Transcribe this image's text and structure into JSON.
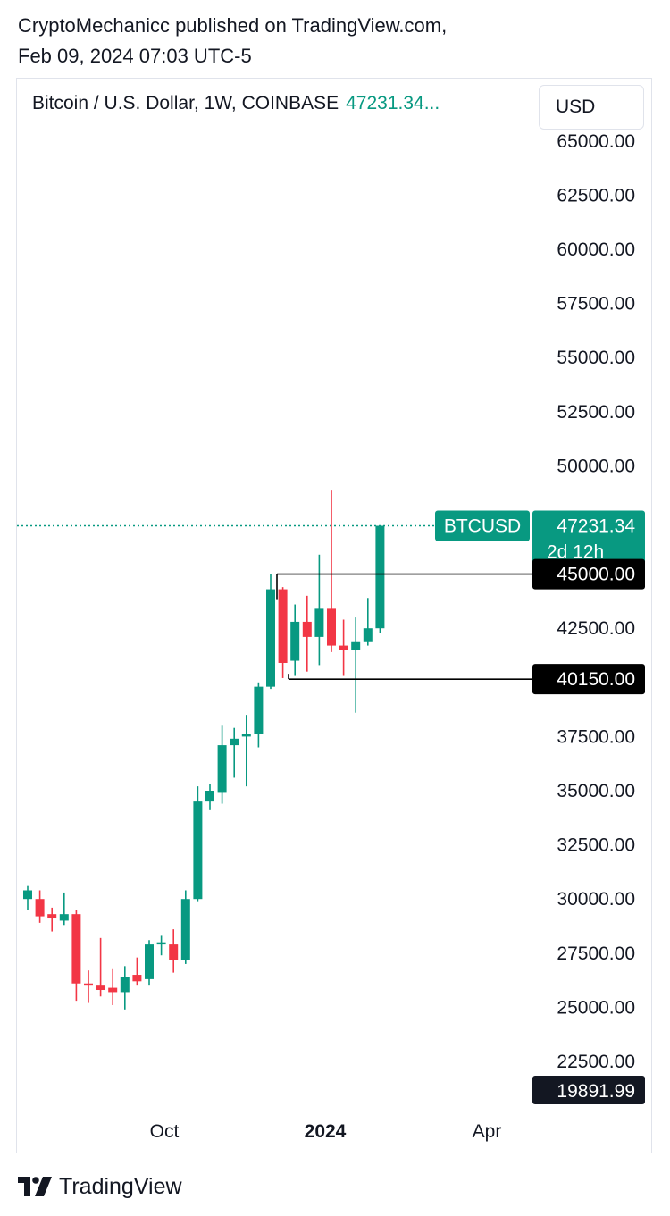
{
  "header": {
    "line1": "CryptoMechanicc published on TradingView.com,",
    "line2": "Feb 09, 2024 07:03 UTC-5"
  },
  "symbol": {
    "name": "Bitcoin / U.S. Dollar, 1W, COINBASE",
    "price": "47231.34..."
  },
  "currency_button": "USD",
  "footer": {
    "brand": "TradingView"
  },
  "colors": {
    "up": "#089981",
    "down": "#f23645",
    "line": "#000000",
    "accent": "#089981"
  },
  "chart_data": {
    "type": "candlestick",
    "title": "Bitcoin / U.S. Dollar, 1W, COINBASE",
    "ylim": [
      19891.99,
      65000
    ],
    "y_ticks": [
      "65000.00",
      "62500.00",
      "60000.00",
      "57500.00",
      "55000.00",
      "52500.00",
      "50000.00",
      "42500.00",
      "37500.00",
      "35000.00",
      "32500.00",
      "30000.00",
      "27500.00",
      "25000.00",
      "22500.00"
    ],
    "x_ticks": [
      "Oct",
      "2024",
      "Apr"
    ],
    "candles": [
      {
        "o": 30000,
        "h": 30600,
        "l": 29500,
        "c": 30400
      },
      {
        "o": 30000,
        "h": 30400,
        "l": 28900,
        "c": 29200
      },
      {
        "o": 29300,
        "h": 29600,
        "l": 28500,
        "c": 29100
      },
      {
        "o": 29000,
        "h": 30300,
        "l": 28800,
        "c": 29300
      },
      {
        "o": 29300,
        "h": 29500,
        "l": 25300,
        "c": 26100
      },
      {
        "o": 26100,
        "h": 26700,
        "l": 25200,
        "c": 26000
      },
      {
        "o": 26000,
        "h": 28200,
        "l": 25500,
        "c": 25800
      },
      {
        "o": 25900,
        "h": 26800,
        "l": 25100,
        "c": 25700
      },
      {
        "o": 25700,
        "h": 26900,
        "l": 24900,
        "c": 26400
      },
      {
        "o": 26500,
        "h": 27300,
        "l": 26000,
        "c": 26200
      },
      {
        "o": 26300,
        "h": 28100,
        "l": 26000,
        "c": 27900
      },
      {
        "o": 27900,
        "h": 28300,
        "l": 27400,
        "c": 28000
      },
      {
        "o": 27900,
        "h": 28600,
        "l": 26600,
        "c": 27200
      },
      {
        "o": 27200,
        "h": 30400,
        "l": 27000,
        "c": 30000
      },
      {
        "o": 30000,
        "h": 35200,
        "l": 29900,
        "c": 34500
      },
      {
        "o": 34500,
        "h": 35300,
        "l": 34100,
        "c": 35000
      },
      {
        "o": 34900,
        "h": 38000,
        "l": 34400,
        "c": 37100
      },
      {
        "o": 37100,
        "h": 37900,
        "l": 35600,
        "c": 37400
      },
      {
        "o": 37500,
        "h": 38500,
        "l": 35200,
        "c": 37600
      },
      {
        "o": 37600,
        "h": 40000,
        "l": 37000,
        "c": 39800
      },
      {
        "o": 39800,
        "h": 45000,
        "l": 39700,
        "c": 44300
      },
      {
        "o": 44300,
        "h": 44400,
        "l": 40200,
        "c": 40900
      },
      {
        "o": 41000,
        "h": 43600,
        "l": 40300,
        "c": 42800
      },
      {
        "o": 42800,
        "h": 44000,
        "l": 40500,
        "c": 42100
      },
      {
        "o": 42100,
        "h": 45900,
        "l": 40800,
        "c": 43400
      },
      {
        "o": 43400,
        "h": 48900,
        "l": 41400,
        "c": 41700
      },
      {
        "o": 41700,
        "h": 42900,
        "l": 40300,
        "c": 41500
      },
      {
        "o": 41500,
        "h": 43000,
        "l": 38600,
        "c": 41900
      },
      {
        "o": 41900,
        "h": 43900,
        "l": 41700,
        "c": 42500
      },
      {
        "o": 42500,
        "h": 47231.34,
        "l": 42300,
        "c": 47231.34
      }
    ],
    "horizontal_levels": [
      {
        "value": 45000,
        "label": "45000.00"
      },
      {
        "value": 40150,
        "label": "40150.00"
      }
    ],
    "last_price": {
      "value": 47231.34,
      "label": "47231.34",
      "countdown": "2d 12h",
      "symbol": "BTCUSD"
    },
    "bottom_value": {
      "value": 19891.99,
      "label": "19891.99"
    }
  }
}
